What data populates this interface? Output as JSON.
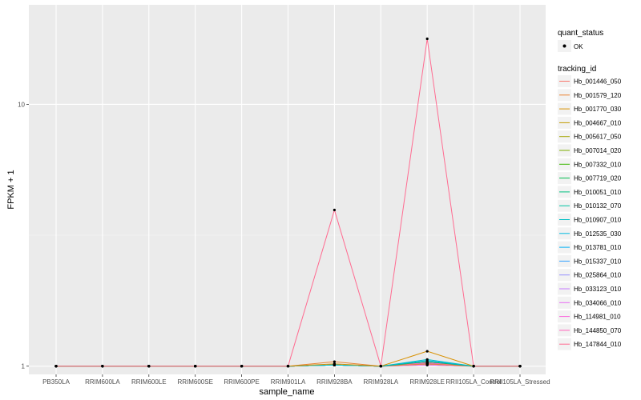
{
  "chart_data": {
    "type": "line",
    "xlabel": "sample_name",
    "ylabel": "FPKM + 1",
    "y_scale": "log",
    "ylim": [
      0.93,
      24
    ],
    "y_ticks": [
      1,
      10
    ],
    "y_tick_labels": [
      "1",
      "10"
    ],
    "grid": true,
    "legend_position": "right",
    "categories": [
      "PB350LA",
      "RRIM600LA",
      "RRIM600LE",
      "RRIM600SE",
      "RRIM600PE",
      "RRIM901LA",
      "RRIM928BA",
      "RRIM928LA",
      "RRIM928LE",
      "RRII105LA_Control",
      "RRII105LA_Stressed"
    ],
    "point_legend": {
      "title": "quant_status",
      "items": [
        "OK"
      ]
    },
    "line_legend_title": "tracking_id",
    "series": [
      {
        "name": "Hb_001446_050",
        "color": "#F8766D",
        "values": [
          1,
          1,
          1,
          1,
          1,
          1,
          1.01,
          1,
          1.02,
          1,
          1
        ]
      },
      {
        "name": "Hb_001579_120",
        "color": "#EA8331",
        "values": [
          1,
          1,
          1,
          1,
          1,
          1,
          1.04,
          1,
          1.02,
          1,
          1
        ]
      },
      {
        "name": "Hb_001770_030",
        "color": "#D89000",
        "values": [
          1,
          1,
          1,
          1,
          1,
          1,
          1.02,
          1,
          1.14,
          1,
          1
        ]
      },
      {
        "name": "Hb_004667_010",
        "color": "#C09B00",
        "values": [
          1,
          1,
          1,
          1,
          1,
          1,
          1.01,
          1,
          1.01,
          1,
          1
        ]
      },
      {
        "name": "Hb_005617_050",
        "color": "#A3A500",
        "values": [
          1,
          1,
          1,
          1,
          1,
          1,
          1.01,
          1,
          1.02,
          1,
          1
        ]
      },
      {
        "name": "Hb_007014_020",
        "color": "#7CAE00",
        "values": [
          1,
          1,
          1,
          1,
          1,
          1,
          1.01,
          1,
          1.03,
          1,
          1
        ]
      },
      {
        "name": "Hb_007332_010",
        "color": "#39B600",
        "values": [
          1,
          1,
          1,
          1,
          1,
          1,
          1.01,
          1,
          1.02,
          1,
          1
        ]
      },
      {
        "name": "Hb_007719_020",
        "color": "#00BB4E",
        "values": [
          1,
          1,
          1,
          1,
          1,
          1,
          1.01,
          1,
          1.04,
          1,
          1
        ]
      },
      {
        "name": "Hb_010051_010",
        "color": "#00BF7D",
        "values": [
          1,
          1,
          1,
          1,
          1,
          1,
          1.01,
          1,
          1.02,
          1,
          1
        ]
      },
      {
        "name": "Hb_010132_070",
        "color": "#00C1A3",
        "values": [
          1,
          1,
          1,
          1,
          1,
          1,
          1.01,
          1,
          1.03,
          1,
          1
        ]
      },
      {
        "name": "Hb_010907_010",
        "color": "#00BFC4",
        "values": [
          1,
          1,
          1,
          1,
          1,
          1,
          1.01,
          1,
          1.06,
          1,
          1
        ]
      },
      {
        "name": "Hb_012535_030",
        "color": "#00BAE0",
        "values": [
          1,
          1,
          1,
          1,
          1,
          1,
          1.01,
          1,
          1.03,
          1,
          1
        ]
      },
      {
        "name": "Hb_013781_010",
        "color": "#00B0F6",
        "values": [
          1,
          1,
          1,
          1,
          1,
          1,
          1.01,
          1,
          1.05,
          1,
          1
        ]
      },
      {
        "name": "Hb_015337_010",
        "color": "#35A2FF",
        "values": [
          1,
          1,
          1,
          1,
          1,
          1,
          1.01,
          1,
          1.02,
          1,
          1
        ]
      },
      {
        "name": "Hb_025864_010",
        "color": "#9590FF",
        "values": [
          1,
          1,
          1,
          1,
          1,
          1,
          1.01,
          1,
          1.03,
          1,
          1
        ]
      },
      {
        "name": "Hb_033123_010",
        "color": "#C77CFF",
        "values": [
          1,
          1,
          1,
          1,
          1,
          1,
          1.01,
          1,
          1.02,
          1,
          1
        ]
      },
      {
        "name": "Hb_034066_010",
        "color": "#E76BF3",
        "values": [
          1,
          1,
          1,
          1,
          1,
          1,
          1.01,
          1,
          1.01,
          1,
          1
        ]
      },
      {
        "name": "Hb_114981_010",
        "color": "#FA62DB",
        "values": [
          1,
          1,
          1,
          1,
          1,
          1,
          1.01,
          1,
          1.02,
          1,
          1
        ]
      },
      {
        "name": "Hb_144850_070",
        "color": "#FF62BC",
        "values": [
          1,
          1,
          1,
          1,
          1,
          1,
          1.01,
          1,
          1.03,
          1,
          1
        ]
      },
      {
        "name": "Hb_147844_010",
        "color": "#FF6C91",
        "values": [
          1,
          1,
          1,
          1,
          1,
          1,
          3.95,
          1,
          17.8,
          1,
          1
        ]
      }
    ]
  }
}
